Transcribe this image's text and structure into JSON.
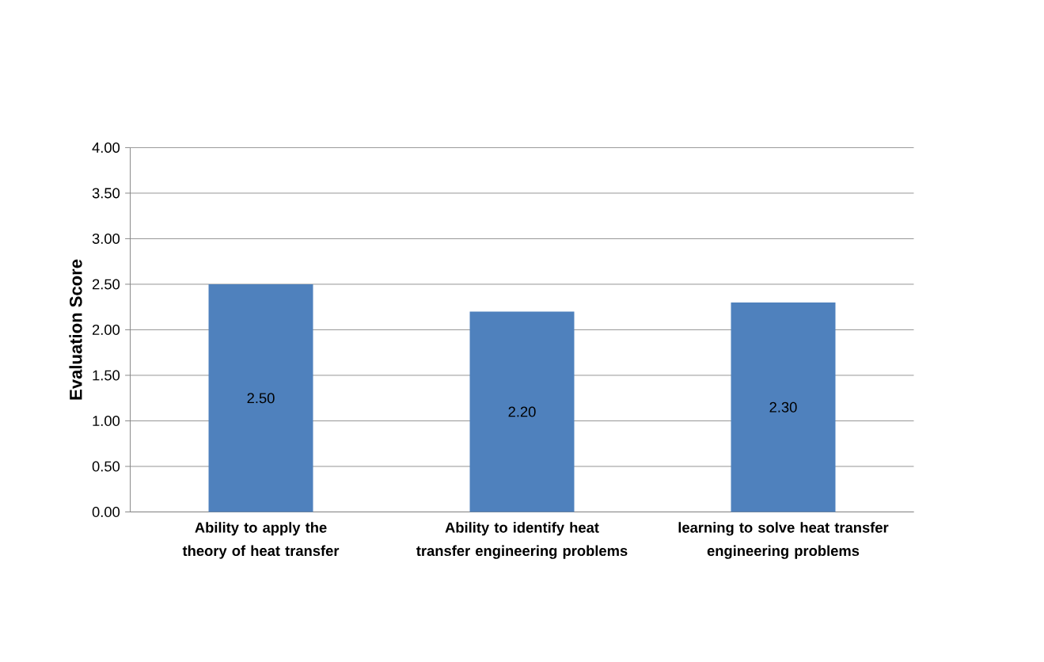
{
  "chart_data": {
    "type": "bar",
    "ylabel": "Evaluation Score",
    "categories": [
      "Ability to apply the theory of heat transfer",
      "Ability to identify heat transfer engineering problems",
      "learning to solve heat transfer engineering problems"
    ],
    "values": [
      2.5,
      2.2,
      2.3
    ],
    "value_labels": [
      "2.50",
      "2.20",
      "2.30"
    ],
    "color": "#4f81bd",
    "ylim": [
      0,
      4
    ],
    "yticks": [
      {
        "value": 0,
        "label": "0.00"
      },
      {
        "value": 0.5,
        "label": "0.50"
      },
      {
        "value": 1,
        "label": "1.00"
      },
      {
        "value": 1.5,
        "label": "1.50"
      },
      {
        "value": 2,
        "label": "2.00"
      },
      {
        "value": 2.5,
        "label": "2.50"
      },
      {
        "value": 3,
        "label": "3.00"
      },
      {
        "value": 3.5,
        "label": "3.50"
      },
      {
        "value": 4,
        "label": "4.00"
      }
    ],
    "grid": "y"
  }
}
